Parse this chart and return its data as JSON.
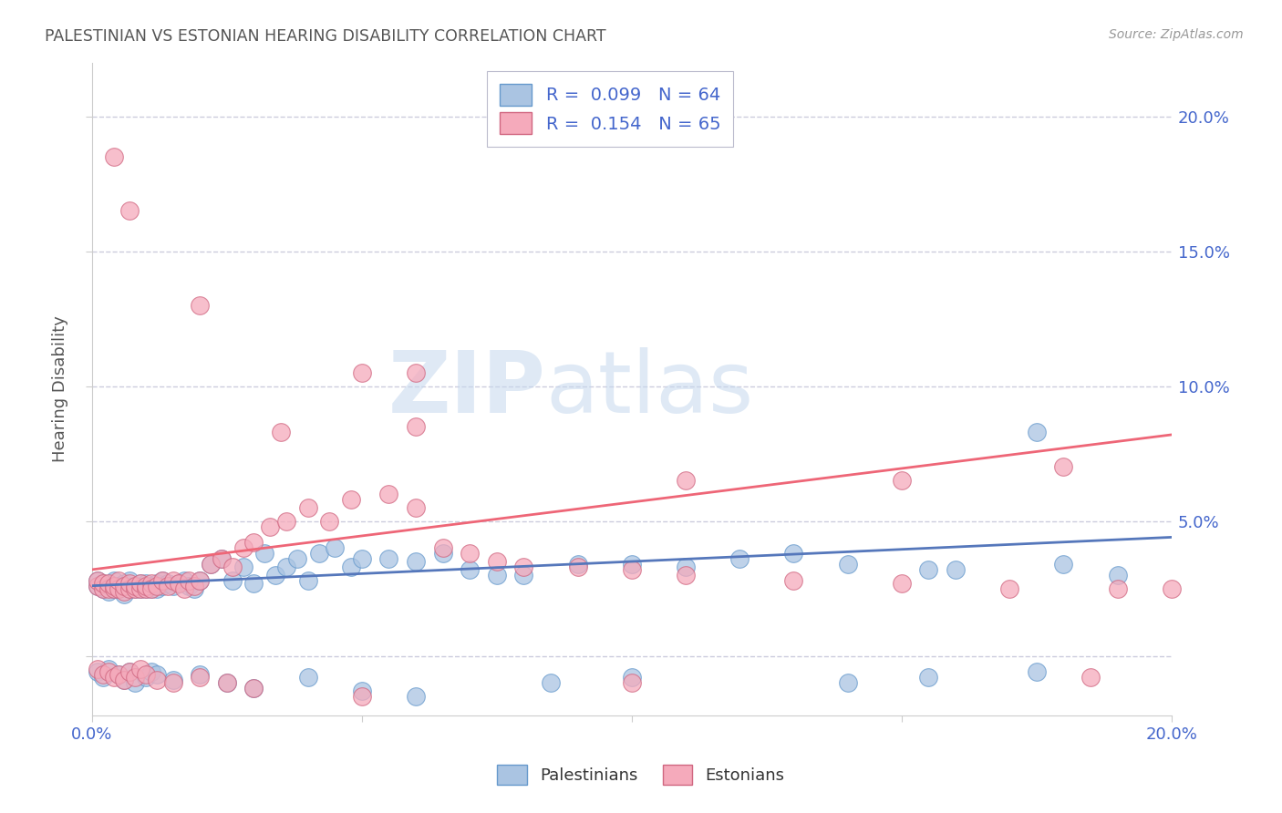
{
  "title": "PALESTINIAN VS ESTONIAN HEARING DISABILITY CORRELATION CHART",
  "source_text": "Source: ZipAtlas.com",
  "ylabel": "Hearing Disability",
  "xlim": [
    0.0,
    0.2
  ],
  "ylim": [
    -0.022,
    0.22
  ],
  "ytick_positions": [
    0.0,
    0.05,
    0.1,
    0.15,
    0.2
  ],
  "ytick_labels": [
    "",
    "5.0%",
    "10.0%",
    "15.0%",
    "20.0%"
  ],
  "xtick_positions": [
    0.0,
    0.05,
    0.1,
    0.15,
    0.2
  ],
  "xtick_labels": [
    "0.0%",
    "",
    "",
    "",
    "20.0%"
  ],
  "palestinians_color": "#aac4e2",
  "palestinians_edge": "#6699cc",
  "estonians_color": "#f5aabb",
  "estonians_edge": "#d06680",
  "trendline_pal_color": "#5577bb",
  "trendline_est_color": "#ee6677",
  "legend_R_pal": "R =  0.099",
  "legend_N_pal": "N = 64",
  "legend_R_est": "R =  0.154",
  "legend_N_est": "N = 65",
  "pal_label": "Palestinians",
  "est_label": "Estonians",
  "watermark1": "ZIP",
  "watermark2": "atlas",
  "grid_color": "#ccccdd",
  "background": "#ffffff",
  "legend_text_color": "#4466cc",
  "title_color": "#555555",
  "source_color": "#999999",
  "ylabel_color": "#555555",
  "tick_label_color": "#4466cc",
  "pal_trend_x": [
    0.0,
    0.2
  ],
  "pal_trend_y": [
    0.026,
    0.044
  ],
  "est_trend_x": [
    0.0,
    0.2
  ],
  "est_trend_y": [
    0.032,
    0.082
  ],
  "pal_scatter_x": [
    0.001,
    0.001,
    0.002,
    0.002,
    0.003,
    0.003,
    0.004,
    0.004,
    0.005,
    0.005,
    0.006,
    0.006,
    0.007,
    0.007,
    0.008,
    0.008,
    0.009,
    0.009,
    0.01,
    0.01,
    0.011,
    0.011,
    0.012,
    0.012,
    0.013,
    0.013,
    0.014,
    0.015,
    0.016,
    0.017,
    0.018,
    0.019,
    0.02,
    0.022,
    0.024,
    0.026,
    0.028,
    0.03,
    0.032,
    0.034,
    0.036,
    0.038,
    0.04,
    0.042,
    0.045,
    0.048,
    0.05,
    0.055,
    0.06,
    0.065,
    0.07,
    0.075,
    0.08,
    0.09,
    0.1,
    0.11,
    0.12,
    0.13,
    0.14,
    0.16,
    0.18,
    0.19,
    0.175,
    0.155
  ],
  "pal_scatter_y": [
    0.026,
    0.028,
    0.025,
    0.027,
    0.024,
    0.026,
    0.025,
    0.028,
    0.025,
    0.026,
    0.023,
    0.027,
    0.025,
    0.028,
    0.025,
    0.026,
    0.025,
    0.027,
    0.025,
    0.027,
    0.025,
    0.026,
    0.025,
    0.027,
    0.026,
    0.028,
    0.027,
    0.026,
    0.027,
    0.028,
    0.026,
    0.025,
    0.028,
    0.034,
    0.036,
    0.028,
    0.033,
    0.027,
    0.038,
    0.03,
    0.033,
    0.036,
    0.028,
    0.038,
    0.04,
    0.033,
    0.036,
    0.036,
    0.035,
    0.038,
    0.032,
    0.03,
    0.03,
    0.034,
    0.034,
    0.033,
    0.036,
    0.038,
    0.034,
    0.032,
    0.034,
    0.03,
    0.083,
    0.032
  ],
  "est_scatter_x": [
    0.001,
    0.001,
    0.002,
    0.002,
    0.003,
    0.003,
    0.004,
    0.004,
    0.005,
    0.005,
    0.006,
    0.006,
    0.007,
    0.007,
    0.008,
    0.008,
    0.009,
    0.009,
    0.01,
    0.01,
    0.011,
    0.011,
    0.012,
    0.013,
    0.014,
    0.015,
    0.016,
    0.017,
    0.018,
    0.019,
    0.02,
    0.022,
    0.024,
    0.026,
    0.028,
    0.03,
    0.033,
    0.036,
    0.04,
    0.044,
    0.048,
    0.055,
    0.06,
    0.065,
    0.07,
    0.075,
    0.08,
    0.09,
    0.1,
    0.11,
    0.13,
    0.15,
    0.17,
    0.19,
    0.2,
    0.004,
    0.007,
    0.05,
    0.02,
    0.035,
    0.06,
    0.11,
    0.15,
    0.18,
    0.06
  ],
  "est_scatter_y": [
    0.026,
    0.028,
    0.025,
    0.027,
    0.025,
    0.027,
    0.025,
    0.026,
    0.025,
    0.028,
    0.024,
    0.026,
    0.025,
    0.027,
    0.025,
    0.026,
    0.025,
    0.027,
    0.025,
    0.026,
    0.027,
    0.025,
    0.026,
    0.028,
    0.026,
    0.028,
    0.027,
    0.025,
    0.028,
    0.026,
    0.028,
    0.034,
    0.036,
    0.033,
    0.04,
    0.042,
    0.048,
    0.05,
    0.055,
    0.05,
    0.058,
    0.06,
    0.055,
    0.04,
    0.038,
    0.035,
    0.033,
    0.033,
    0.032,
    0.03,
    0.028,
    0.027,
    0.025,
    0.025,
    0.025,
    0.185,
    0.165,
    0.105,
    0.13,
    0.083,
    0.105,
    0.065,
    0.065,
    0.07,
    0.085
  ],
  "pal_below_x": [
    0.001,
    0.002,
    0.003,
    0.005,
    0.006,
    0.007,
    0.008,
    0.01,
    0.011,
    0.012,
    0.015,
    0.02,
    0.025,
    0.03,
    0.04,
    0.05,
    0.06,
    0.085,
    0.1,
    0.14,
    0.155,
    0.175
  ],
  "pal_below_y": [
    -0.006,
    -0.008,
    -0.005,
    -0.007,
    -0.009,
    -0.006,
    -0.01,
    -0.008,
    -0.006,
    -0.007,
    -0.009,
    -0.007,
    -0.01,
    -0.012,
    -0.008,
    -0.013,
    -0.015,
    -0.01,
    -0.008,
    -0.01,
    -0.008,
    -0.006
  ],
  "est_below_x": [
    0.001,
    0.002,
    0.003,
    0.004,
    0.005,
    0.006,
    0.007,
    0.008,
    0.009,
    0.01,
    0.012,
    0.015,
    0.02,
    0.025,
    0.03,
    0.05,
    0.1,
    0.185
  ],
  "est_below_y": [
    -0.005,
    -0.007,
    -0.006,
    -0.008,
    -0.007,
    -0.009,
    -0.006,
    -0.008,
    -0.005,
    -0.007,
    -0.009,
    -0.01,
    -0.008,
    -0.01,
    -0.012,
    -0.015,
    -0.01,
    -0.008
  ]
}
